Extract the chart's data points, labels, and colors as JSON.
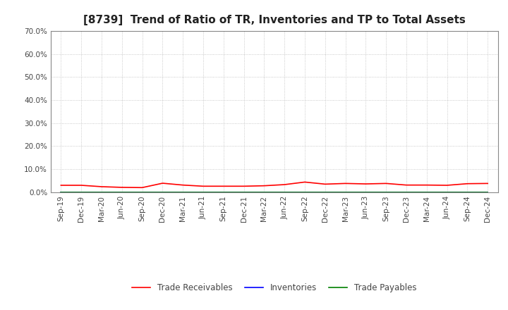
{
  "title": "[8739]  Trend of Ratio of TR, Inventories and TP to Total Assets",
  "x_labels": [
    "Sep-19",
    "Dec-19",
    "Mar-20",
    "Jun-20",
    "Sep-20",
    "Dec-20",
    "Mar-21",
    "Jun-21",
    "Sep-21",
    "Dec-21",
    "Mar-22",
    "Jun-22",
    "Sep-22",
    "Dec-22",
    "Mar-23",
    "Jun-23",
    "Sep-23",
    "Dec-23",
    "Mar-24",
    "Jun-24",
    "Sep-24",
    "Dec-24"
  ],
  "trade_receivables": [
    0.03,
    0.03,
    0.024,
    0.021,
    0.02,
    0.039,
    0.031,
    0.026,
    0.026,
    0.026,
    0.028,
    0.033,
    0.044,
    0.035,
    0.038,
    0.036,
    0.038,
    0.031,
    0.031,
    0.03,
    0.037,
    0.038
  ],
  "inventories": [
    0.0,
    0.0,
    0.0,
    0.0,
    0.0,
    0.0,
    0.0,
    0.0,
    0.0,
    0.0,
    0.0,
    0.0,
    0.0,
    0.0,
    0.0,
    0.0,
    0.0,
    0.0,
    0.0,
    0.0,
    0.0,
    0.0
  ],
  "trade_payables": [
    0.0,
    0.0,
    0.0,
    0.0,
    0.0,
    0.0,
    0.0,
    0.0,
    0.0,
    0.0,
    0.0,
    0.0,
    0.0,
    0.0,
    0.0,
    0.0,
    0.0,
    0.0,
    0.0,
    0.0,
    0.0,
    0.0
  ],
  "tr_color": "#FF0000",
  "inv_color": "#0000FF",
  "tp_color": "#008000",
  "ylim": [
    0.0,
    0.7
  ],
  "yticks": [
    0.0,
    0.1,
    0.2,
    0.3,
    0.4,
    0.5,
    0.6,
    0.7
  ],
  "ytick_labels": [
    "0.0%",
    "10.0%",
    "20.0%",
    "30.0%",
    "40.0%",
    "50.0%",
    "60.0%",
    "70.0%"
  ],
  "bg_color": "#FFFFFF",
  "grid_color": "#AAAAAA",
  "title_fontsize": 11,
  "tick_fontsize": 7.5,
  "legend_labels": [
    "Trade Receivables",
    "Inventories",
    "Trade Payables"
  ]
}
